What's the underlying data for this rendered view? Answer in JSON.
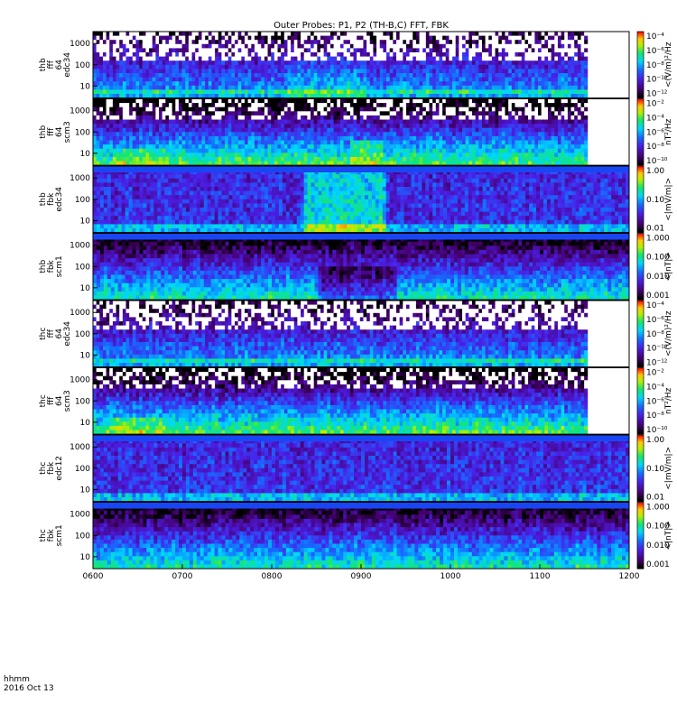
{
  "chart_data": {
    "type": "heatmap",
    "title": "Outer Probes: P1, P2 (TH-B,C) FFT, FBK",
    "footer": {
      "label1": "hhmm",
      "label2": "2016 Oct 13"
    },
    "x_ticks": [
      "0600",
      "0700",
      "0800",
      "0900",
      "1000",
      "1100",
      "1200"
    ],
    "x_range": [
      "06:00",
      "12:00"
    ],
    "panels": [
      {
        "id": "thb-ffp-e",
        "ylabel": [
          "thb",
          "fff",
          "64",
          "edc34"
        ],
        "yticks": [
          "10",
          "100",
          "1000"
        ],
        "ylog": true,
        "cb_title": "<(V/m)²/Hz",
        "cb_ticks": [
          "10⁻⁴",
          "10⁻⁶",
          "10⁻⁸",
          "10⁻¹⁰",
          "10⁻¹²"
        ],
        "kind": "ffp_e",
        "probe": "b"
      },
      {
        "id": "thb-ffp-b",
        "ylabel": [
          "thb",
          "fff",
          "64",
          "scm3"
        ],
        "yticks": [
          "10",
          "100",
          "1000"
        ],
        "ylog": true,
        "cb_title": "nT²/Hz",
        "cb_ticks": [
          "10⁻²",
          "10⁻⁴",
          "10⁻⁶",
          "10⁻⁸",
          "10⁻¹⁰"
        ],
        "kind": "ffp_b",
        "probe": "b"
      },
      {
        "id": "thb-fbk-e",
        "ylabel": [
          "thb",
          "fbk",
          "edc34"
        ],
        "yticks": [
          "10",
          "100",
          "1000"
        ],
        "ylog": true,
        "cb_title": "<|mV/m|>",
        "cb_ticks": [
          "1.00",
          "0.10",
          "0.01"
        ],
        "kind": "fbk_e",
        "probe": "b"
      },
      {
        "id": "thb-fbk-b",
        "ylabel": [
          "thb",
          "fbk",
          "scm1"
        ],
        "yticks": [
          "10",
          "100",
          "1000"
        ],
        "ylog": true,
        "cb_title": "<|nT|>",
        "cb_ticks": [
          "1.000",
          "0.100",
          "0.010",
          "0.001"
        ],
        "kind": "fbk_b",
        "probe": "b"
      },
      {
        "id": "thc-ffp-e",
        "ylabel": [
          "thc",
          "fff",
          "64",
          "edc34"
        ],
        "yticks": [
          "10",
          "100",
          "1000"
        ],
        "ylog": true,
        "cb_title": "<(V/m)²/Hz",
        "cb_ticks": [
          "10⁻⁴",
          "10⁻⁶",
          "10⁻⁸",
          "10⁻¹⁰",
          "10⁻¹²"
        ],
        "kind": "ffp_e",
        "probe": "c"
      },
      {
        "id": "thc-ffp-b",
        "ylabel": [
          "thc",
          "fff",
          "64",
          "scm3"
        ],
        "yticks": [
          "10",
          "100",
          "1000"
        ],
        "ylog": true,
        "cb_title": "nT²/Hz",
        "cb_ticks": [
          "10⁻²",
          "10⁻⁴",
          "10⁻⁶",
          "10⁻⁸",
          "10⁻¹⁰"
        ],
        "kind": "ffp_b",
        "probe": "c"
      },
      {
        "id": "thc-fbk-e",
        "ylabel": [
          "thc",
          "fbk",
          "edc12"
        ],
        "yticks": [
          "10",
          "100",
          "1000"
        ],
        "ylog": true,
        "cb_title": "<|mV/m|>",
        "cb_ticks": [
          "1.00",
          "0.10",
          "0.01"
        ],
        "kind": "fbk_e",
        "probe": "c"
      },
      {
        "id": "thc-fbk-b",
        "ylabel": [
          "thc",
          "fbk",
          "scm1"
        ],
        "yticks": [
          "10",
          "100",
          "1000"
        ],
        "ylog": true,
        "cb_title": "<|nT|>",
        "cb_ticks": [
          "1.000",
          "0.100",
          "0.010",
          "0.001"
        ],
        "kind": "fbk_b",
        "probe": "c"
      }
    ],
    "colormap": "rainbow (black → purple → blue → cyan → green → yellow → red)",
    "data_end_time": "11:32"
  }
}
